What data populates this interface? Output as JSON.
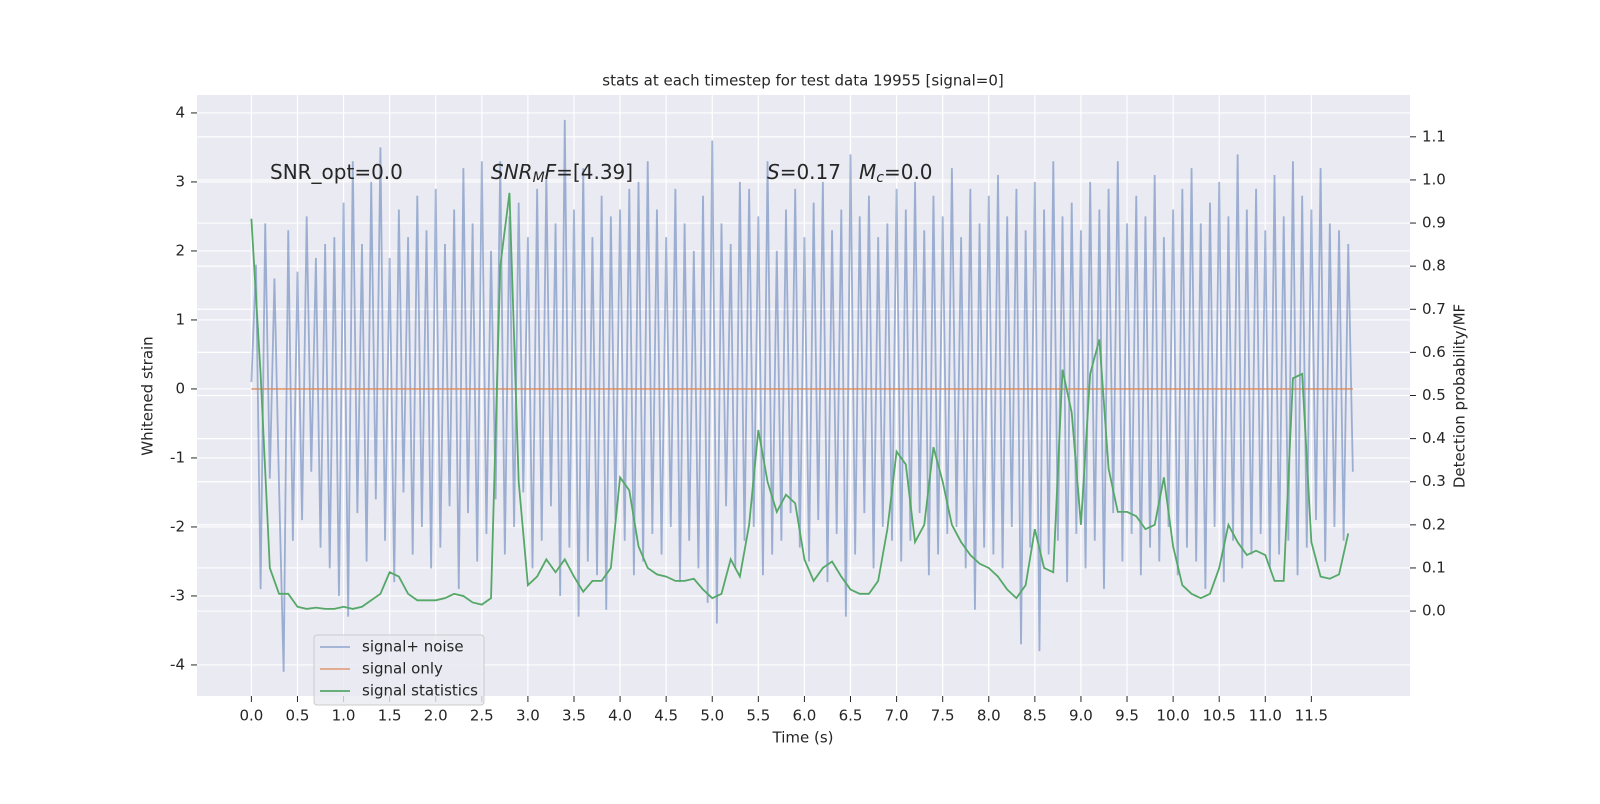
{
  "chart_data": {
    "type": "line",
    "title": "stats at each timestep for test data 19955 [signal=0]",
    "xlabel": "Time (s)",
    "ylabel": "Whitened strain",
    "y2label": "Detection probability/MF",
    "xlim": [
      -0.59,
      12.57
    ],
    "ylim": [
      -4.45,
      4.26
    ],
    "y2lim": [
      -0.197,
      1.197
    ],
    "xticks": [
      {
        "value": 0,
        "label": "0.0"
      },
      0.5,
      {
        "value": 1,
        "label": "1.0"
      },
      1.5,
      {
        "value": 2,
        "label": "2.0"
      },
      2.5,
      {
        "value": 3,
        "label": "3.0"
      },
      3.5,
      {
        "value": 4,
        "label": "4.0"
      },
      4.5,
      {
        "value": 5,
        "label": "5.0"
      },
      5.5,
      {
        "value": 6,
        "label": "6.0"
      },
      6.5,
      {
        "value": 7,
        "label": "7.0"
      },
      7.5,
      {
        "value": 8,
        "label": "8.0"
      },
      8.5,
      {
        "value": 9,
        "label": "9.0"
      },
      9.5,
      {
        "value": 10,
        "label": "10.0"
      },
      10.5,
      {
        "value": 11,
        "label": "11.0"
      },
      11.5
    ],
    "yticks": [
      -4,
      -3,
      -2,
      -1,
      0,
      1,
      2,
      3,
      4
    ],
    "y2ticks": [
      {
        "value": 0,
        "label": "0.0"
      },
      0.1,
      0.2,
      0.3,
      0.4,
      0.5,
      0.6,
      0.7,
      0.8,
      0.9,
      {
        "value": 1,
        "label": "1.0"
      },
      1.1
    ],
    "grid": true,
    "legend": "lower left",
    "background": "#eaeaf2",
    "annotations": [
      [
        {
          "text": "SNR_opt=0.0",
          "style": "normal"
        }
      ],
      [
        {
          "text": "SNR",
          "style": "italic"
        },
        {
          "text": "M",
          "style": "sub"
        },
        {
          "text": "F",
          "style": "italic"
        },
        {
          "text": "=[4.39]",
          "style": "normal"
        }
      ],
      [
        {
          "text": "S",
          "style": "italic"
        },
        {
          "text": "=0.17",
          "style": "normal"
        }
      ],
      [
        {
          "text": "M",
          "style": "italic"
        },
        {
          "text": "c",
          "style": "sub"
        },
        {
          "text": "=0.0",
          "style": "normal"
        }
      ]
    ],
    "series": [
      {
        "name": "signal+ noise",
        "color": "#4c72b0",
        "opacity": 0.5,
        "x": [
          0,
          0.05,
          0.1,
          0.15,
          0.2,
          0.25,
          0.3,
          0.35,
          0.4,
          0.45,
          0.5,
          0.55,
          0.6,
          0.65,
          0.7,
          0.75,
          0.8,
          0.85,
          0.9,
          0.95,
          1,
          1.05,
          1.1,
          1.15,
          1.2,
          1.25,
          1.3,
          1.35,
          1.4,
          1.45,
          1.5,
          1.55,
          1.6,
          1.65,
          1.7,
          1.75,
          1.8,
          1.85,
          1.9,
          1.95,
          2,
          2.05,
          2.1,
          2.15,
          2.2,
          2.25,
          2.3,
          2.35,
          2.4,
          2.45,
          2.5,
          2.55,
          2.6,
          2.65,
          2.7,
          2.75,
          2.8,
          2.85,
          2.9,
          2.95,
          3,
          3.05,
          3.1,
          3.15,
          3.2,
          3.25,
          3.3,
          3.35,
          3.4,
          3.45,
          3.5,
          3.55,
          3.6,
          3.65,
          3.7,
          3.75,
          3.8,
          3.85,
          3.9,
          3.95,
          4,
          4.05,
          4.1,
          4.15,
          4.2,
          4.25,
          4.3,
          4.35,
          4.4,
          4.45,
          4.5,
          4.55,
          4.6,
          4.65,
          4.7,
          4.75,
          4.8,
          4.85,
          4.9,
          4.95,
          5,
          5.05,
          5.1,
          5.15,
          5.2,
          5.25,
          5.3,
          5.35,
          5.4,
          5.45,
          5.5,
          5.55,
          5.6,
          5.65,
          5.7,
          5.75,
          5.8,
          5.85,
          5.9,
          5.95,
          6,
          6.05,
          6.1,
          6.15,
          6.2,
          6.25,
          6.3,
          6.35,
          6.4,
          6.45,
          6.5,
          6.55,
          6.6,
          6.65,
          6.7,
          6.75,
          6.8,
          6.85,
          6.9,
          6.95,
          7,
          7.05,
          7.1,
          7.15,
          7.2,
          7.25,
          7.3,
          7.35,
          7.4,
          7.45,
          7.5,
          7.55,
          7.6,
          7.65,
          7.7,
          7.75,
          7.8,
          7.85,
          7.9,
          7.95,
          8,
          8.05,
          8.1,
          8.15,
          8.2,
          8.25,
          8.3,
          8.35,
          8.4,
          8.45,
          8.5,
          8.55,
          8.6,
          8.65,
          8.7,
          8.75,
          8.8,
          8.85,
          8.9,
          8.95,
          9,
          9.05,
          9.1,
          9.15,
          9.2,
          9.25,
          9.3,
          9.35,
          9.4,
          9.45,
          9.5,
          9.55,
          9.6,
          9.65,
          9.7,
          9.75,
          9.8,
          9.85,
          9.9,
          9.95,
          10,
          10.05,
          10.1,
          10.15,
          10.2,
          10.25,
          10.3,
          10.35,
          10.4,
          10.45,
          10.5,
          10.55,
          10.6,
          10.65,
          10.7,
          10.75,
          10.8,
          10.85,
          10.9,
          10.95,
          11,
          11.05,
          11.1,
          11.15,
          11.2,
          11.25,
          11.3,
          11.35,
          11.4,
          11.45,
          11.5,
          11.55,
          11.6,
          11.65,
          11.7,
          11.75,
          11.8,
          11.85,
          11.9,
          11.95
        ],
        "values": [
          0.1,
          1.8,
          -2.9,
          2.4,
          -1.3,
          1.6,
          -1.4,
          -4.1,
          2.3,
          -2.2,
          1.7,
          -1.9,
          2.5,
          -1.2,
          1.9,
          -2.3,
          2.1,
          -2.6,
          2.2,
          -3.0,
          2.7,
          -3.3,
          3.3,
          -1.8,
          2.1,
          -2.5,
          3.0,
          -1.6,
          3.5,
          -2.2,
          1.9,
          -2.8,
          2.6,
          -1.5,
          2.2,
          -2.4,
          2.8,
          -2.0,
          2.3,
          -2.6,
          2.9,
          -2.3,
          2.1,
          -1.7,
          2.6,
          -2.9,
          3.2,
          -1.8,
          2.4,
          -2.5,
          3.3,
          -2.1,
          2.0,
          -1.6,
          3.3,
          -2.4,
          2.5,
          -2.0,
          2.7,
          -1.5,
          2.2,
          -2.6,
          2.9,
          -2.2,
          3.1,
          -1.7,
          2.4,
          -3.0,
          3.9,
          -2.3,
          2.6,
          -3.3,
          3.2,
          -2.5,
          2.2,
          -2.7,
          2.8,
          -3.2,
          2.5,
          -1.9,
          2.6,
          -2.2,
          2.9,
          -2.7,
          3.0,
          -2.5,
          3.3,
          -2.1,
          2.6,
          -2.4,
          2.2,
          -2.0,
          2.9,
          -2.8,
          2.4,
          -2.2,
          2.0,
          -2.6,
          2.8,
          -3.1,
          3.6,
          -3.4,
          2.4,
          -1.7,
          2.1,
          -2.6,
          3.0,
          -2.2,
          2.9,
          -2.0,
          2.5,
          -2.7,
          3.3,
          -2.4,
          2.0,
          -2.2,
          2.6,
          -1.8,
          2.9,
          -2.3,
          2.2,
          -2.5,
          2.7,
          -1.9,
          3.0,
          -2.8,
          2.3,
          -2.1,
          2.6,
          -3.3,
          3.4,
          -2.4,
          2.5,
          -1.8,
          2.8,
          -2.6,
          2.2,
          -2.0,
          2.4,
          -2.2,
          2.9,
          -2.5,
          2.6,
          -2.2,
          3.0,
          -1.8,
          2.3,
          -2.7,
          2.8,
          -2.4,
          2.5,
          -2.1,
          3.2,
          -2.0,
          2.2,
          -2.6,
          2.9,
          -3.2,
          2.4,
          -2.3,
          2.8,
          -2.4,
          3.1,
          -2.6,
          2.5,
          -2.0,
          2.9,
          -3.7,
          2.3,
          -2.3,
          3.0,
          -3.8,
          2.6,
          -2.4,
          3.3,
          -2.2,
          2.5,
          -2.8,
          2.7,
          -2.1,
          2.3,
          -2.6,
          3.0,
          -2.2,
          2.6,
          -2.9,
          2.9,
          -1.8,
          3.3,
          -2.5,
          2.4,
          -2.1,
          2.8,
          -2.7,
          2.5,
          -2.3,
          3.1,
          -2.5,
          2.2,
          -2.0,
          2.6,
          -2.7,
          2.9,
          -2.3,
          3.2,
          -2.5,
          2.4,
          -2.9,
          2.7,
          -2.0,
          3.0,
          -2.8,
          2.5,
          -2.2,
          3.4,
          -2.6,
          2.6,
          -2.4,
          2.9,
          -2.1,
          2.3,
          -2.6,
          3.1,
          -2.4,
          2.5,
          -2.2,
          3.3,
          -2.7,
          2.8,
          -2.3,
          2.6,
          -1.9,
          3.2,
          -2.5,
          2.4,
          -2.0,
          2.3,
          -2.2,
          2.1,
          -1.2
        ]
      },
      {
        "name": "signal only",
        "color": "#dd8452",
        "opacity": 0.7,
        "x": [
          0,
          11.95
        ],
        "values": [
          0,
          0
        ]
      },
      {
        "name": "signal statistics",
        "color": "#55a868",
        "opacity": 1,
        "axis": "y2",
        "x": [
          0,
          0.1,
          0.2,
          0.3,
          0.4,
          0.5,
          0.6,
          0.7,
          0.8,
          0.9,
          1,
          1.1,
          1.2,
          1.3,
          1.4,
          1.5,
          1.6,
          1.7,
          1.8,
          1.9,
          2,
          2.1,
          2.2,
          2.3,
          2.4,
          2.5,
          2.6,
          2.7,
          2.8,
          2.9,
          3,
          3.1,
          3.2,
          3.3,
          3.4,
          3.5,
          3.6,
          3.7,
          3.8,
          3.9,
          4,
          4.1,
          4.2,
          4.3,
          4.4,
          4.5,
          4.6,
          4.7,
          4.8,
          4.9,
          5,
          5.1,
          5.2,
          5.3,
          5.4,
          5.5,
          5.6,
          5.7,
          5.8,
          5.9,
          6,
          6.1,
          6.2,
          6.3,
          6.4,
          6.5,
          6.6,
          6.7,
          6.8,
          6.9,
          7,
          7.1,
          7.2,
          7.3,
          7.4,
          7.5,
          7.6,
          7.7,
          7.8,
          7.9,
          8,
          8.1,
          8.2,
          8.3,
          8.4,
          8.5,
          8.6,
          8.7,
          8.8,
          8.9,
          9,
          9.1,
          9.2,
          9.3,
          9.4,
          9.5,
          9.6,
          9.7,
          9.8,
          9.9,
          10,
          10.1,
          10.2,
          10.3,
          10.4,
          10.5,
          10.6,
          10.7,
          10.8,
          10.9,
          11,
          11.1,
          11.2,
          11.3,
          11.4,
          11.5,
          11.6,
          11.7,
          11.8,
          11.9
        ],
        "values": [
          0.91,
          0.55,
          0.1,
          0.04,
          0.04,
          0.01,
          0.005,
          0.008,
          0.005,
          0.005,
          0.01,
          0.005,
          0.01,
          0.025,
          0.04,
          0.09,
          0.08,
          0.04,
          0.025,
          0.025,
          0.025,
          0.03,
          0.04,
          0.035,
          0.02,
          0.015,
          0.03,
          0.8,
          0.97,
          0.3,
          0.06,
          0.08,
          0.12,
          0.09,
          0.12,
          0.08,
          0.045,
          0.07,
          0.07,
          0.1,
          0.31,
          0.28,
          0.15,
          0.1,
          0.085,
          0.08,
          0.07,
          0.07,
          0.075,
          0.05,
          0.03,
          0.04,
          0.12,
          0.08,
          0.2,
          0.42,
          0.3,
          0.23,
          0.27,
          0.25,
          0.12,
          0.07,
          0.1,
          0.115,
          0.08,
          0.05,
          0.04,
          0.04,
          0.07,
          0.19,
          0.37,
          0.34,
          0.16,
          0.2,
          0.38,
          0.3,
          0.2,
          0.16,
          0.13,
          0.11,
          0.1,
          0.08,
          0.05,
          0.03,
          0.06,
          0.19,
          0.1,
          0.09,
          0.56,
          0.46,
          0.2,
          0.55,
          0.63,
          0.33,
          0.23,
          0.23,
          0.22,
          0.19,
          0.2,
          0.31,
          0.15,
          0.06,
          0.04,
          0.03,
          0.04,
          0.1,
          0.2,
          0.16,
          0.13,
          0.14,
          0.13,
          0.07,
          0.07,
          0.54,
          0.55,
          0.16,
          0.08,
          0.075,
          0.085,
          0.18
        ]
      }
    ]
  }
}
